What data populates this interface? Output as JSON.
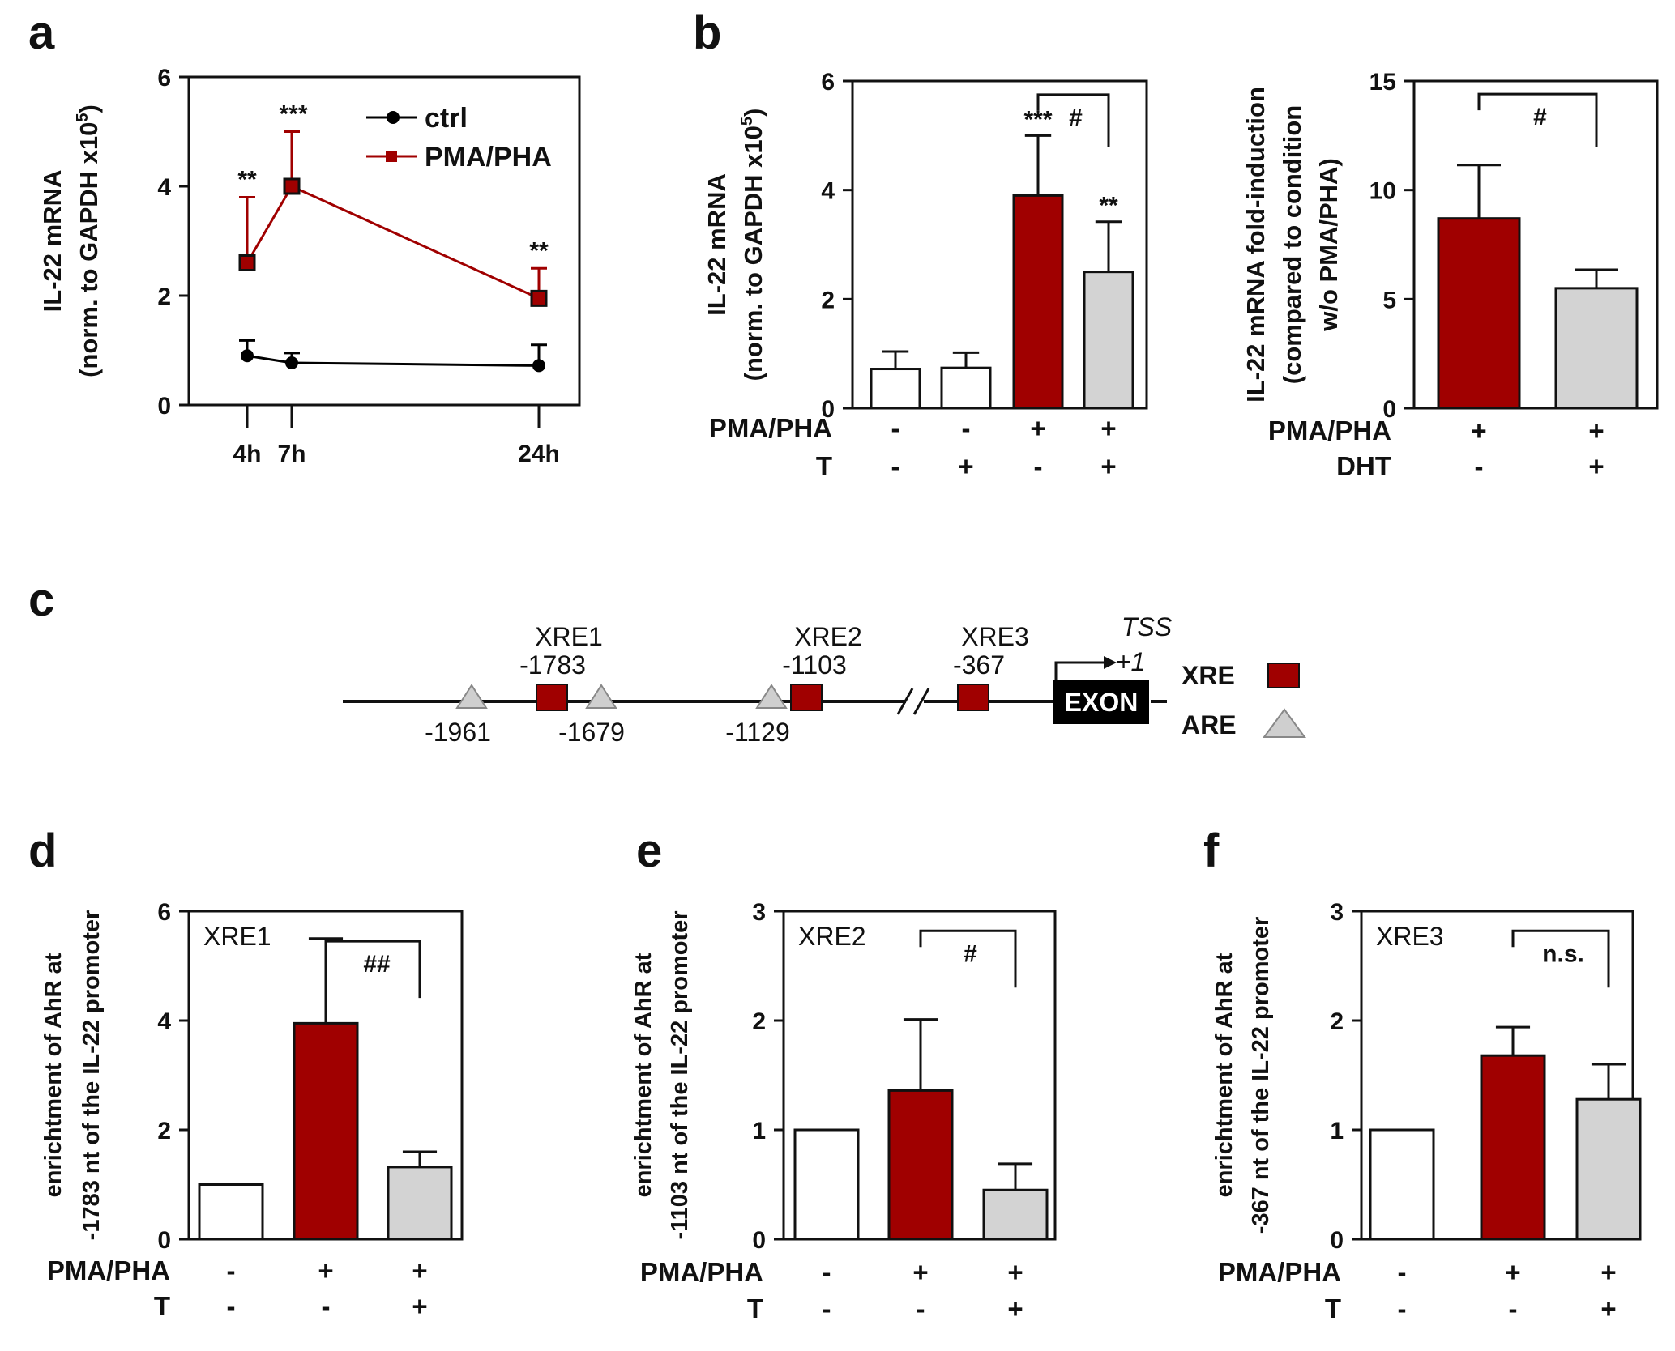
{
  "colors": {
    "pma": "#a00000",
    "ctrl": "#000000",
    "untreated": "#ffffff",
    "treated": "#d3d3d3",
    "outline": "#111111"
  },
  "chart_data": [
    {
      "id": "a",
      "type": "line",
      "panel_label": "a",
      "ylabel": [
        "IL-22 mRNA",
        "(norm. to GAPDH x10",
        "5",
        ")"
      ],
      "ylim": [
        0,
        6
      ],
      "yticks": [
        "0",
        "2",
        "4",
        "6"
      ],
      "xticks": [
        {
          "x": 4,
          "label": "4h"
        },
        {
          "x": 7,
          "label": "7h"
        },
        {
          "x": 24,
          "label": "24h"
        }
      ],
      "series": [
        {
          "name": "ctrl",
          "color": "#000000",
          "marker": "circle",
          "x": [
            4,
            7,
            24
          ],
          "values": [
            0.9,
            0.77,
            0.72
          ],
          "err": [
            0.28,
            0.18,
            0.38
          ],
          "sig": [
            "",
            "",
            ""
          ]
        },
        {
          "name": "PMA/PHA",
          "color": "#a00000",
          "marker": "square",
          "x": [
            4,
            7,
            24
          ],
          "values": [
            2.6,
            4.0,
            1.95
          ],
          "err": [
            1.2,
            1.0,
            0.55
          ],
          "sig": [
            "**",
            "***",
            "**"
          ]
        }
      ]
    },
    {
      "id": "b1",
      "type": "bar",
      "panel_label": "b",
      "ylabel": [
        "IL-22 mRNA",
        "(norm. to GAPDH x10",
        "5",
        ")"
      ],
      "ylim": [
        0,
        6
      ],
      "yticks": [
        "0",
        "2",
        "4",
        "6"
      ],
      "values": [
        0.72,
        0.74,
        3.9,
        2.5
      ],
      "err": [
        0.32,
        0.28,
        1.1,
        0.92
      ],
      "sig": [
        "",
        "",
        "***",
        "**"
      ],
      "colors": [
        "#ffffff",
        "#ffffff",
        "#a00000",
        "#d3d3d3"
      ],
      "conditions": [
        {
          "label": "PMA/PHA",
          "signs": [
            "-",
            "-",
            "+",
            "+"
          ]
        },
        {
          "label": "T",
          "signs": [
            "-",
            "+",
            "-",
            "+"
          ]
        }
      ],
      "bracket": {
        "from": 2,
        "to": 3,
        "label": "#"
      }
    },
    {
      "id": "b2",
      "type": "bar",
      "panel_label": "",
      "ylabel": [
        "IL-22 mRNA fold-induction",
        "(compared to condition",
        "w/o PMA/PHA)"
      ],
      "ylim": [
        0,
        15
      ],
      "yticks": [
        "0",
        "5",
        "10",
        "15"
      ],
      "values": [
        8.7,
        5.5
      ],
      "err": [
        2.45,
        0.85
      ],
      "sig": [
        "",
        ""
      ],
      "colors": [
        "#a00000",
        "#d3d3d3"
      ],
      "conditions": [
        {
          "label": "PMA/PHA",
          "signs": [
            "+",
            "+"
          ]
        },
        {
          "label": "DHT",
          "signs": [
            "-",
            "+"
          ]
        }
      ],
      "bracket": {
        "from": 0,
        "to": 1,
        "label": "#"
      }
    },
    {
      "id": "d",
      "type": "bar",
      "panel_label": "d",
      "inset": "XRE1",
      "ylabel": [
        "enrichtment of AhR at",
        "-1783 nt of the IL-22 promoter"
      ],
      "ylim": [
        0,
        6
      ],
      "yticks": [
        "0",
        "2",
        "4",
        "6"
      ],
      "values": [
        1.0,
        3.95,
        1.32
      ],
      "err": [
        0,
        1.55,
        0.28
      ],
      "sig": [
        "",
        "",
        ""
      ],
      "colors": [
        "#ffffff",
        "#a00000",
        "#d3d3d3"
      ],
      "conditions": [
        {
          "label": "PMA/PHA",
          "signs": [
            "-",
            "+",
            "+"
          ]
        },
        {
          "label": "T",
          "signs": [
            "-",
            "-",
            "+"
          ]
        }
      ],
      "bracket": {
        "from": 1,
        "to": 2,
        "label": "##"
      }
    },
    {
      "id": "e",
      "type": "bar",
      "panel_label": "e",
      "inset": "XRE2",
      "ylabel": [
        "enrichtment of AhR at",
        "-1103 nt of the IL-22 promoter"
      ],
      "ylim": [
        0,
        3
      ],
      "yticks": [
        "0",
        "1",
        "2",
        "3"
      ],
      "values": [
        1.0,
        1.36,
        0.45
      ],
      "err": [
        0,
        0.65,
        0.24
      ],
      "sig": [
        "",
        "",
        ""
      ],
      "colors": [
        "#ffffff",
        "#a00000",
        "#d3d3d3"
      ],
      "conditions": [
        {
          "label": "PMA/PHA",
          "signs": [
            "-",
            "+",
            "+"
          ]
        },
        {
          "label": "T",
          "signs": [
            "-",
            "-",
            "+"
          ]
        }
      ],
      "bracket": {
        "from": 1,
        "to": 2,
        "label": "#"
      }
    },
    {
      "id": "f",
      "type": "bar",
      "panel_label": "f",
      "inset": "XRE3",
      "ylabel": [
        "enrichtment of AhR at",
        "-367 nt of the IL-22 promoter"
      ],
      "ylim": [
        0,
        3
      ],
      "yticks": [
        "0",
        "1",
        "2",
        "3"
      ],
      "values": [
        1.0,
        1.68,
        1.28
      ],
      "err": [
        0,
        0.26,
        0.32
      ],
      "sig": [
        "",
        "",
        ""
      ],
      "colors": [
        "#ffffff",
        "#a00000",
        "#d3d3d3"
      ],
      "conditions": [
        {
          "label": "PMA/PHA",
          "signs": [
            "-",
            "+",
            "+"
          ]
        },
        {
          "label": "T",
          "signs": [
            "-",
            "-",
            "+"
          ]
        }
      ],
      "bracket": {
        "from": 1,
        "to": 2,
        "label": "n.s."
      }
    }
  ],
  "promoter": {
    "panel_label": "c",
    "xre_sites": [
      {
        "name": "XRE1",
        "pos": "-1783"
      },
      {
        "name": "XRE2",
        "pos": "-1103"
      },
      {
        "name": "XRE3",
        "pos": "-367"
      }
    ],
    "are_sites": [
      "-1961",
      "-1679",
      "-1129"
    ],
    "tss_label": "TSS",
    "tss_pos": "+1",
    "exon_label": "EXON",
    "legend": {
      "xre": "XRE",
      "are": "ARE"
    }
  }
}
